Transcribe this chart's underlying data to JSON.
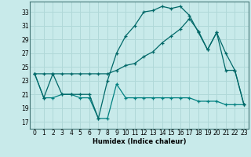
{
  "xlabel": "Humidex (Indice chaleur)",
  "bg_color": "#c8eaea",
  "grid_color": "#b0d8d8",
  "line_color1": "#006868",
  "line_color2": "#008080",
  "xlim": [
    -0.5,
    23.5
  ],
  "ylim": [
    16,
    34.5
  ],
  "yticks": [
    17,
    19,
    21,
    23,
    25,
    27,
    29,
    31,
    33
  ],
  "xticks": [
    0,
    1,
    2,
    3,
    4,
    5,
    6,
    7,
    8,
    9,
    10,
    11,
    12,
    13,
    14,
    15,
    16,
    17,
    18,
    19,
    20,
    21,
    22,
    23
  ],
  "series1_x": [
    0,
    1,
    2,
    3,
    4,
    5,
    6,
    7,
    8,
    9,
    10,
    11,
    12,
    13,
    14,
    15,
    16,
    17,
    18,
    19,
    20,
    21,
    22,
    23
  ],
  "series1_y": [
    24.0,
    24.0,
    24.0,
    24.0,
    24.0,
    24.0,
    24.0,
    24.0,
    24.0,
    24.5,
    25.2,
    25.5,
    26.5,
    27.2,
    28.5,
    29.5,
    30.5,
    32.0,
    30.2,
    27.5,
    30.0,
    27.0,
    24.5,
    19.5
  ],
  "series2_x": [
    0,
    1,
    2,
    3,
    4,
    5,
    6,
    7,
    8,
    9,
    10,
    11,
    12,
    13,
    14,
    15,
    16,
    17,
    18,
    19,
    20,
    21,
    22,
    23
  ],
  "series2_y": [
    24.0,
    20.5,
    20.5,
    21.0,
    21.0,
    20.5,
    20.5,
    17.5,
    17.5,
    22.5,
    20.5,
    20.5,
    20.5,
    20.5,
    20.5,
    20.5,
    20.5,
    20.5,
    20.0,
    20.0,
    20.0,
    19.5,
    19.5,
    19.5
  ],
  "series3_x": [
    0,
    1,
    2,
    3,
    4,
    5,
    6,
    7,
    8,
    9,
    10,
    11,
    12,
    13,
    14,
    15,
    16,
    17,
    18,
    19,
    20,
    21,
    22,
    23
  ],
  "series3_y": [
    24.0,
    20.5,
    24.0,
    21.0,
    21.0,
    21.0,
    21.0,
    17.5,
    23.0,
    27.0,
    29.5,
    31.0,
    33.0,
    33.2,
    33.8,
    33.5,
    33.8,
    32.5,
    30.0,
    27.5,
    30.0,
    24.5,
    24.5,
    19.5
  ]
}
